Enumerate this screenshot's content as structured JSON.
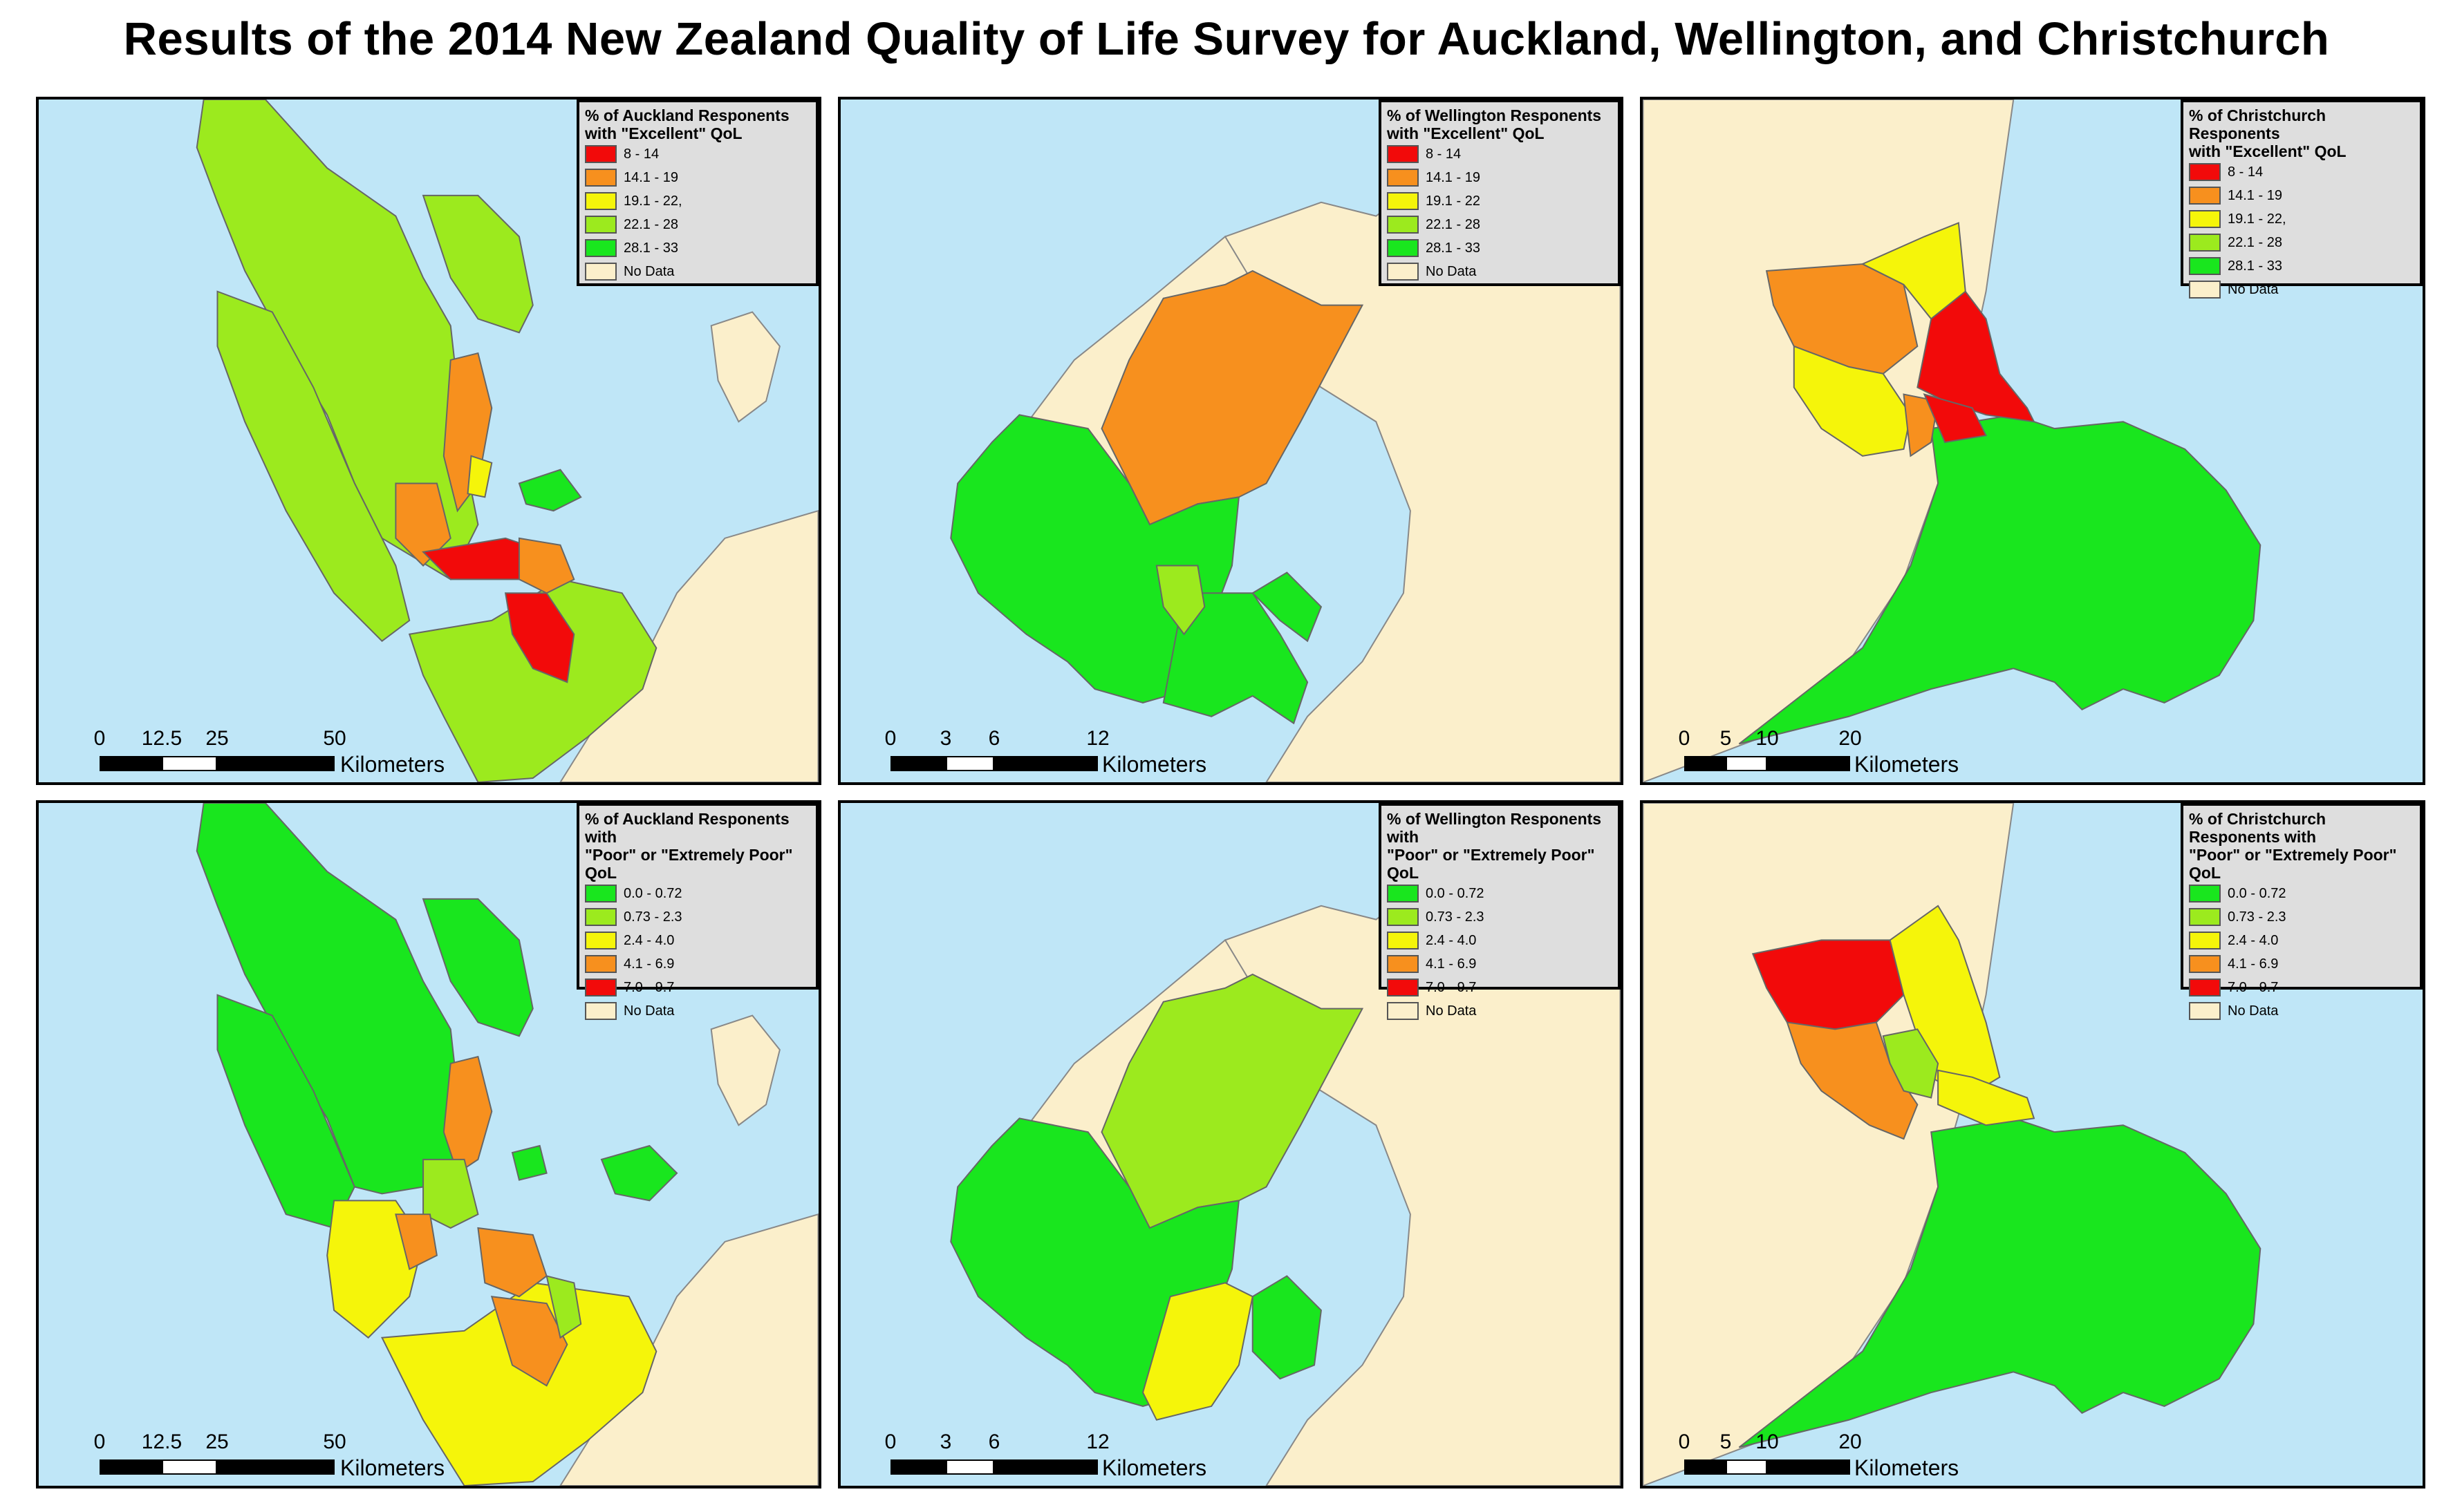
{
  "title": "Results of the 2014 New Zealand Quality of Life Survey for Auckland, Wellington, and Christchurch",
  "colors": {
    "water": "#bfe6f7",
    "land": "#fbefcb",
    "red": "#f20a0a",
    "orange": "#f7901e",
    "yellow": "#f5f50a",
    "lightgreen": "#9cea1e",
    "green": "#19e61e",
    "nodata": "#fbefcb"
  },
  "legends": {
    "auckland_excellent": {
      "title": "% of Auckland Responents\nwith \"Excellent\" QoL",
      "items": [
        "8 - 14",
        "14.1 - 19",
        "19.1 - 22,",
        "22.1 - 28",
        "28.1 - 33",
        "No Data"
      ]
    },
    "wellington_excellent": {
      "title": "% of Wellington Responents\nwith \"Excellent\" QoL",
      "items": [
        "8 - 14",
        "14.1 - 19",
        "19.1 - 22",
        "22.1 - 28",
        "28.1 - 33",
        "No Data"
      ]
    },
    "christchurch_excellent": {
      "title": "% of Christchurch Responents\nwith \"Excellent\" QoL",
      "items": [
        "8 - 14",
        "14.1 - 19",
        "19.1 - 22,",
        "22.1 - 28",
        "28.1 - 33",
        "No Data"
      ]
    },
    "auckland_poor": {
      "title": "% of Auckland Responents with\n\"Poor\" or \"Extremely Poor\" QoL",
      "items": [
        "0.0 - 0.72",
        "0.73 - 2.3",
        "2.4 - 4.0",
        "4.1 - 6.9",
        "7.0 - 9.7",
        "No Data"
      ]
    },
    "wellington_poor": {
      "title": "% of Wellington Responents with\n\"Poor\" or \"Extremely Poor\" QoL",
      "items": [
        "0.0 - 0.72",
        "0.73 - 2.3",
        "2.4 - 4.0",
        "4.1 - 6.9",
        "7.0 - 9.7",
        "No Data"
      ]
    },
    "christchurch_poor": {
      "title": "% of Christchurch Responents with\n\"Poor\" or \"Extremely Poor\" QoL",
      "items": [
        "0.0 - 0.72",
        "0.73 - 2.3",
        "2.4 - 4.0",
        "4.1 - 6.9",
        "7.0 - 9.7",
        "No Data"
      ]
    }
  },
  "scales": {
    "auckland": {
      "ticks": [
        "0",
        "12.5",
        "25",
        "50"
      ],
      "unit": "Kilometers"
    },
    "wellington": {
      "ticks": [
        "0",
        "3",
        "6",
        "12"
      ],
      "unit": "Kilometers"
    },
    "christchurch": {
      "ticks": [
        "0",
        "5",
        "10",
        "20"
      ],
      "unit": "Kilometers"
    }
  }
}
